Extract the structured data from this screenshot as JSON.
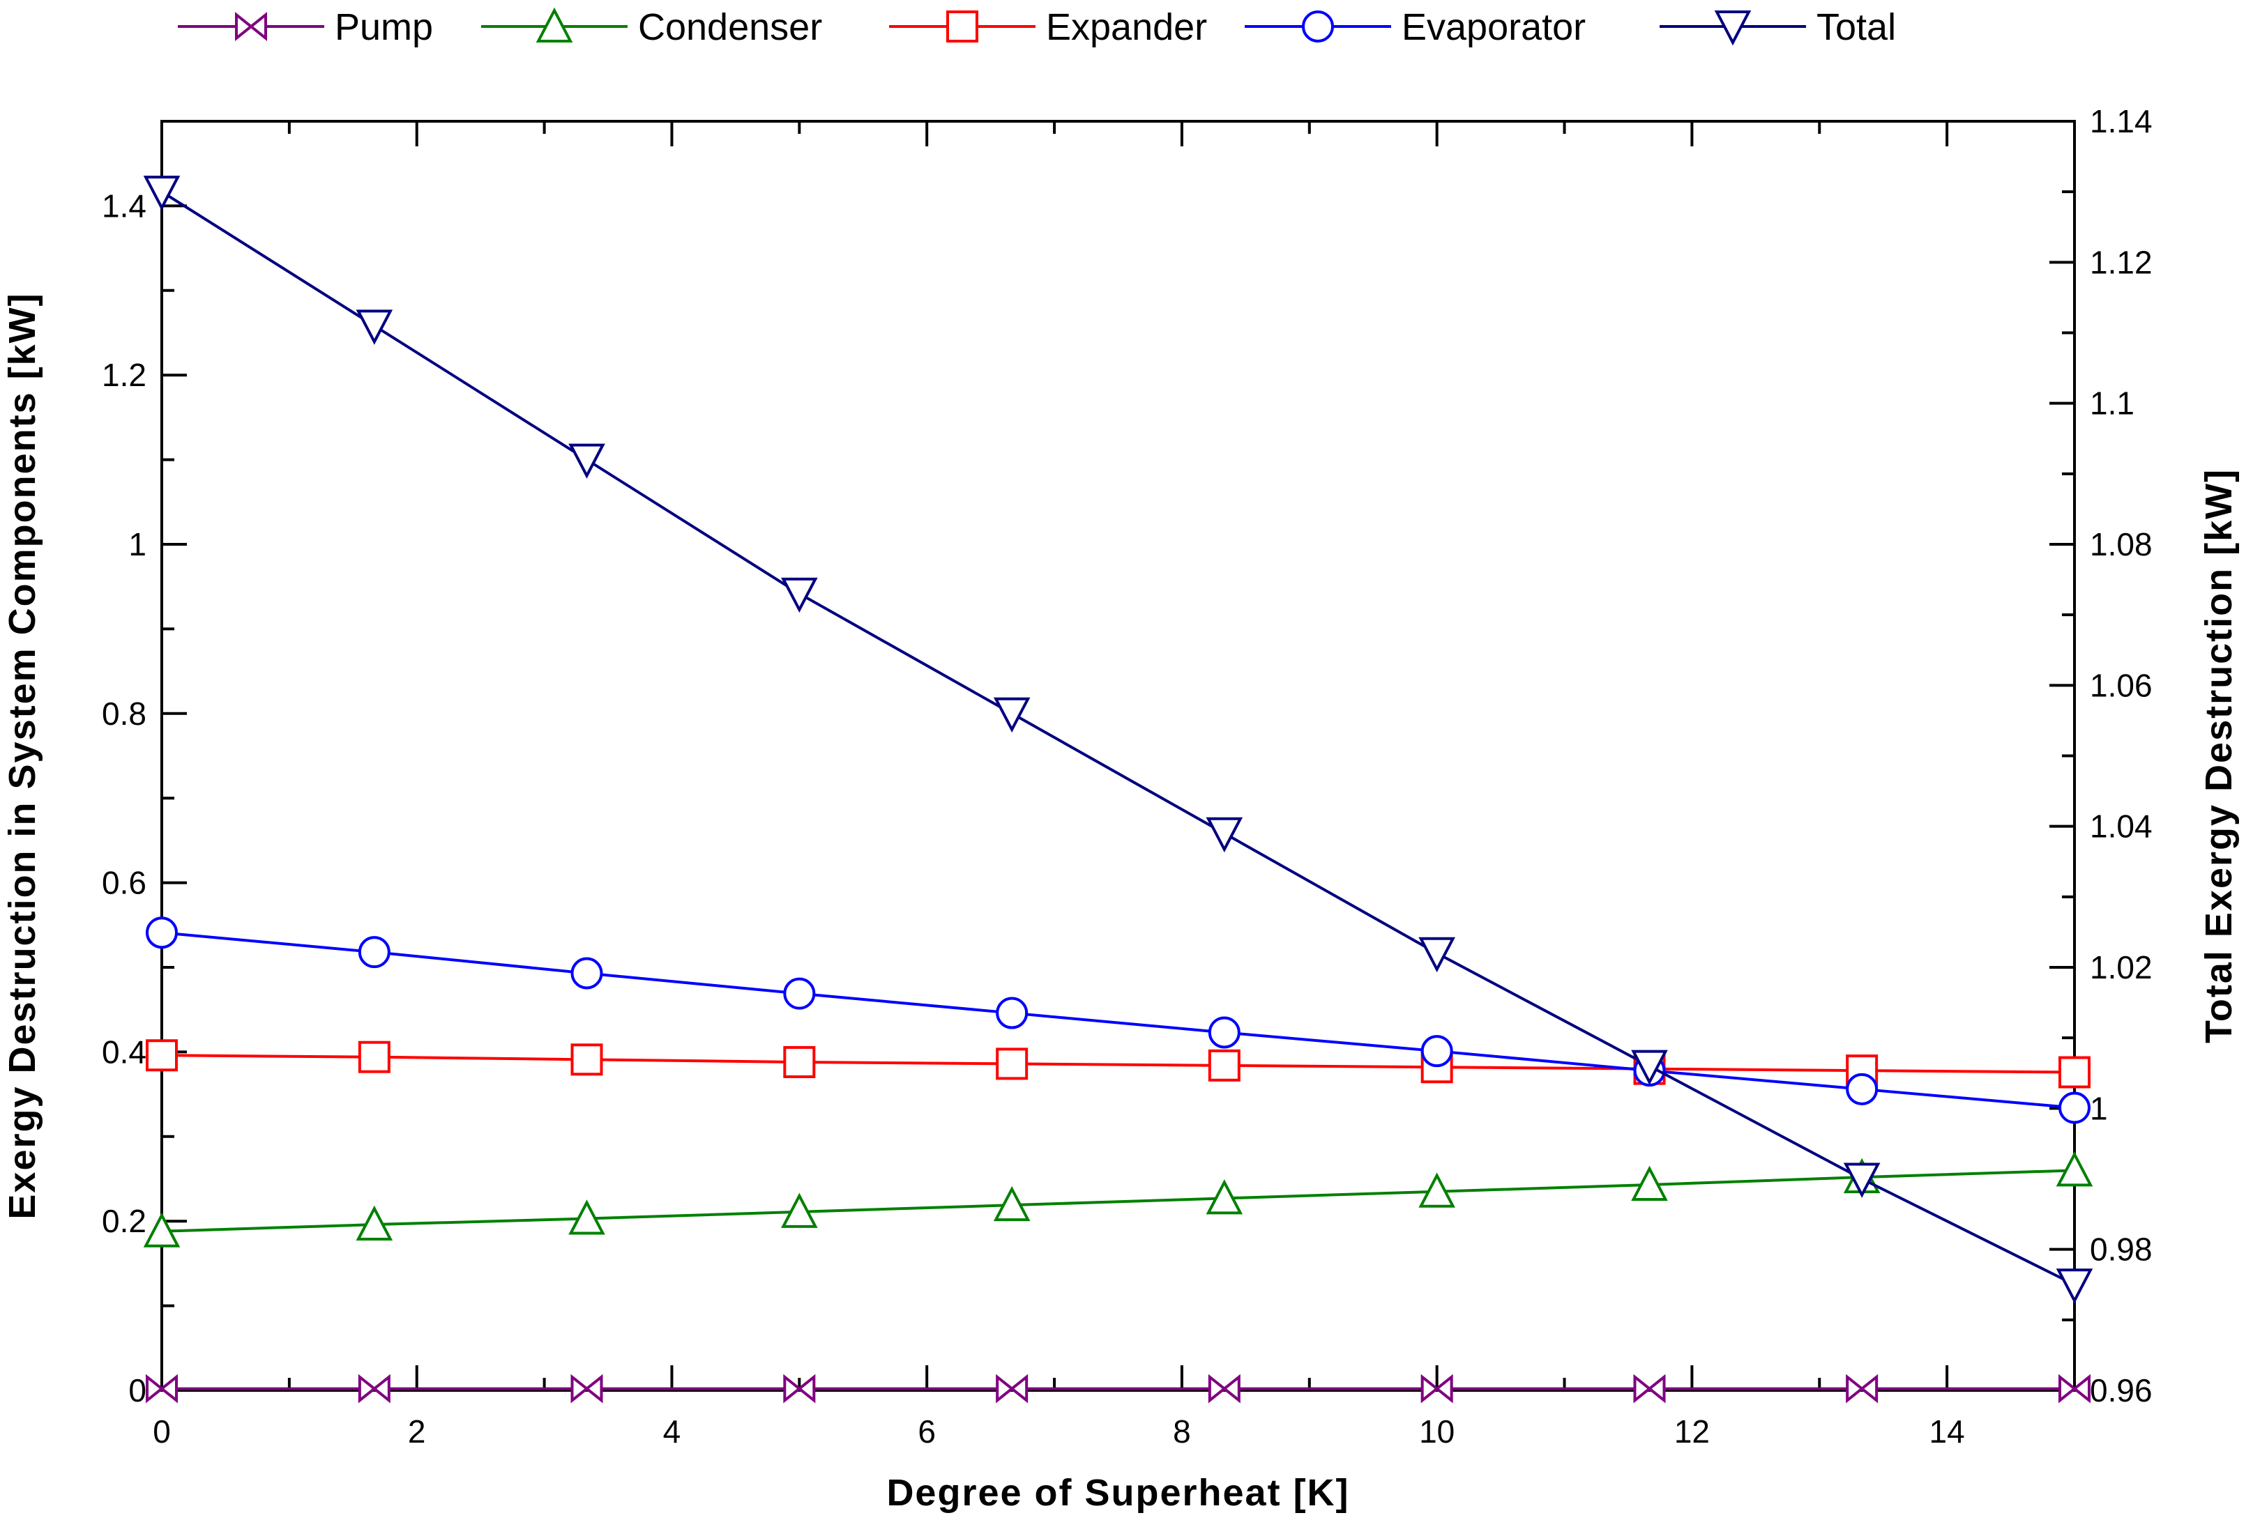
{
  "chart_data": {
    "type": "line",
    "x": [
      0,
      1.667,
      3.333,
      5,
      6.667,
      8.333,
      10,
      11.667,
      13.333,
      15
    ],
    "xlabel": "Degree of Superheat [K]",
    "ylabel": "Exergy Destruction in System Components [kW]",
    "y2label": "Total Exergy Destruction [kW]",
    "xlim": [
      0,
      15
    ],
    "ylim": [
      0,
      1.5
    ],
    "y2lim": [
      0.96,
      1.14
    ],
    "xticks": [
      "0",
      "2",
      "4",
      "6",
      "8",
      "10",
      "12",
      "14"
    ],
    "yticks": [
      "0",
      "0.2",
      "0.4",
      "0.6",
      "0.8",
      "1",
      "1.2",
      "1.4"
    ],
    "y2ticks": [
      "0.96",
      "0.98",
      "1",
      "1.02",
      "1.04",
      "1.06",
      "1.08",
      "1.1",
      "1.12",
      "1.14"
    ],
    "legend_position": "top",
    "grid": false,
    "series": [
      {
        "name": "Pump",
        "axis": "left",
        "marker": "bowtie",
        "color": "#800080",
        "values": [
          0.002,
          0.002,
          0.002,
          0.002,
          0.002,
          0.002,
          0.002,
          0.002,
          0.002,
          0.002
        ]
      },
      {
        "name": "Condenser",
        "axis": "left",
        "marker": "triangle-up",
        "color": "#008000",
        "values": [
          0.188,
          0.196,
          0.203,
          0.211,
          0.219,
          0.227,
          0.235,
          0.243,
          0.252,
          0.26
        ]
      },
      {
        "name": "Expander",
        "axis": "left",
        "marker": "square",
        "color": "#ff0000",
        "values": [
          0.396,
          0.394,
          0.391,
          0.388,
          0.386,
          0.384,
          0.382,
          0.38,
          0.378,
          0.376
        ]
      },
      {
        "name": "Evaporator",
        "axis": "left",
        "marker": "circle",
        "color": "#0000ff",
        "values": [
          0.541,
          0.518,
          0.493,
          0.469,
          0.446,
          0.423,
          0.401,
          0.378,
          0.356,
          0.334
        ]
      },
      {
        "name": "Total",
        "axis": "right",
        "marker": "triangle-down",
        "color": "#000080",
        "values": [
          1.13,
          1.111,
          1.092,
          1.073,
          1.056,
          1.039,
          1.022,
          1.006,
          0.99,
          0.975
        ]
      }
    ]
  }
}
